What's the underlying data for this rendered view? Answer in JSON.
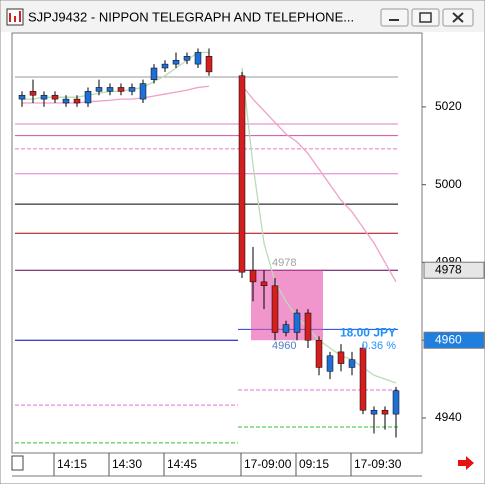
{
  "window_title": "SJPJ9432 - NIPPON TELEGRAPH AND TELEPHONE...",
  "chart_data": {
    "type": "candlestick",
    "categories": [
      null,
      null,
      null,
      "14:15",
      null,
      null,
      null,
      null,
      "14:30",
      null,
      null,
      null,
      null,
      "14:45",
      null,
      null,
      null,
      null,
      null,
      null,
      "17-09:00",
      null,
      null,
      null,
      null,
      "09:15",
      null,
      null,
      null,
      null,
      "17-09:30",
      null,
      null,
      null,
      null
    ],
    "open": [
      5022,
      5024,
      5022,
      5023,
      5021,
      5022,
      5021,
      5024,
      5024,
      5025,
      5024,
      5022,
      5027,
      5030,
      5031,
      5032,
      5031,
      5033,
      null,
      null,
      5028,
      4978,
      4975,
      4974,
      4962,
      4962,
      4967,
      4960,
      4952,
      4957,
      4953,
      4958,
      4941,
      4942,
      4941
    ],
    "high": [
      5024,
      5027,
      5024,
      5024,
      5023,
      5023,
      5025,
      5027,
      5026,
      5026,
      5026,
      5027,
      5031,
      5032,
      5034,
      5034,
      5035,
      5035,
      null,
      null,
      5029,
      4984,
      4978,
      4976,
      4965,
      4968,
      4968,
      4961,
      4957,
      4959,
      4957,
      4959,
      4943,
      4943,
      4948
    ],
    "low": [
      5020,
      5021,
      5020,
      5021,
      5020,
      5020,
      5020,
      5023,
      5023,
      5023,
      5023,
      5021,
      5026,
      5029,
      5030,
      5031,
      5030,
      5028,
      null,
      null,
      4976,
      4970,
      4968,
      4960,
      4961,
      4960,
      4958,
      4951,
      4950,
      4952,
      4951,
      4941,
      4936,
      4937,
      4935
    ],
    "close": [
      5023,
      5023,
      5023,
      5022,
      5022,
      5021,
      5024,
      5025,
      5025,
      5024,
      5025,
      5026,
      5030,
      5031,
      5032,
      5033,
      5034,
      5029,
      null,
      null,
      4977.5,
      4975,
      4974,
      4962,
      4964,
      4967,
      4960,
      4953,
      4956,
      4954,
      4955,
      4942,
      4942,
      4941,
      4947
    ],
    "up_color": "#1f6fd6",
    "down_color": "#d21f1f",
    "lines": [
      {
        "color": "#b8dcb8",
        "values": [
          5022,
          5022,
          5022.5,
          5022.5,
          5022.5,
          5022.5,
          5023,
          5023.5,
          5024,
          5024,
          5024.5,
          5025,
          5026.5,
          5028,
          5030,
          5032,
          5034,
          5034,
          null,
          null,
          5030,
          5005,
          4985,
          4975,
          4970,
          4966,
          4963,
          4960,
          4958,
          4956,
          4955,
          4953,
          4951,
          4950,
          4949
        ]
      },
      {
        "color": "#f0a0c8",
        "values": [
          5021,
          5021,
          5021,
          5021,
          5021,
          5021,
          5021.3,
          5021.5,
          5021.7,
          5022,
          5022,
          5022.3,
          5022.8,
          5023.3,
          5023.8,
          5024.3,
          5025,
          5025.3,
          null,
          null,
          5025.5,
          5022,
          5019,
          5016,
          5013,
          5011,
          5008,
          5004,
          5000,
          4996,
          4993,
          4989,
          4985,
          4980,
          4975
        ]
      }
    ],
    "levels": [
      {
        "value": 5027.7,
        "color": "#9a9a9a",
        "dash": false
      },
      {
        "value": 5015.6,
        "color": "#e27ccb",
        "dash": false
      },
      {
        "value": 5012.6,
        "color": "#d24eb0",
        "dash": false
      },
      {
        "value": 5009.2,
        "color": "#e27ccb",
        "dash": true
      },
      {
        "value": 5002.8,
        "color": "#e27ccb",
        "dash": false
      },
      {
        "value": 4995,
        "color": "#000000",
        "dash": false
      },
      {
        "value": 4987.5,
        "color": "#b00000",
        "dash": false
      },
      {
        "value": 4978,
        "color": "#5a005a",
        "dash": false
      }
    ],
    "levels_before_break": [
      {
        "value": 4960,
        "color": "#0000c0",
        "dash": false
      },
      {
        "value": 4943.3,
        "color": "#e070d0",
        "dash": true
      },
      {
        "value": 4933.6,
        "color": "#30c030",
        "dash": true
      }
    ],
    "levels_after_break": [
      {
        "value": 4962.8,
        "color": "#2040e0",
        "dash": false
      },
      {
        "value": 4947.2,
        "color": "#e070d0",
        "dash": true
      },
      {
        "value": 4937.7,
        "color": "#30c030",
        "dash": true
      }
    ],
    "measure": {
      "from": 4978,
      "to": 4960,
      "label": "18.00 JPY",
      "percent_label": "0.36 %"
    },
    "ylim": [
      4931,
      5039
    ],
    "yticks": [
      4940,
      4960,
      4980,
      5000,
      5020
    ]
  }
}
